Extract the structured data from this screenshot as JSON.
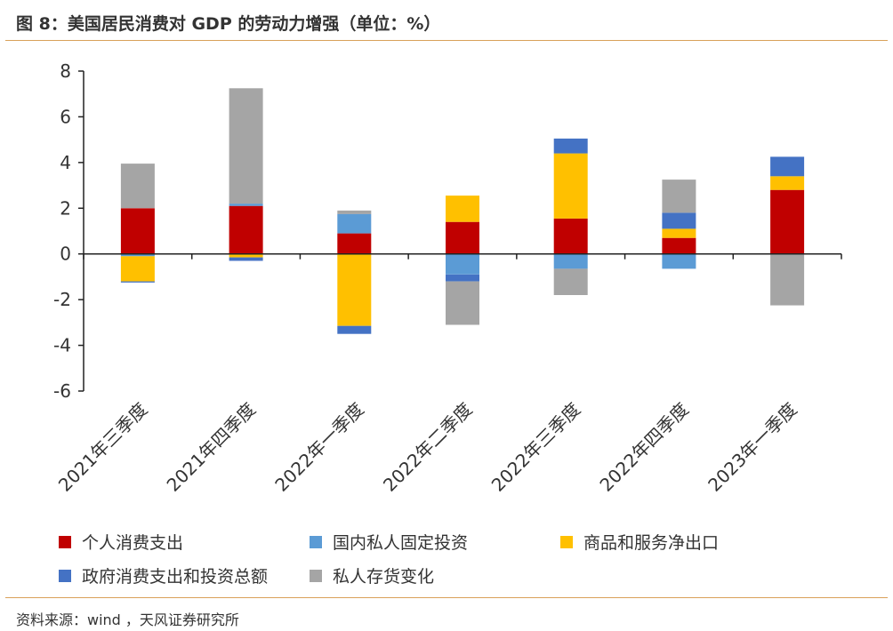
{
  "title": "图 8：美国居民消费对 GDP 的劳动力增强（单位：%）",
  "source": "资料来源：wind ，天风证券研究所",
  "colors": {
    "personal_consumption": "#C00000",
    "fixed_investment": "#5B9BD5",
    "net_exports": "#FFC000",
    "government": "#4472C4",
    "inventory": "#A5A5A5"
  },
  "chart_data": {
    "type": "bar",
    "stacked": true,
    "categories": [
      "2021年三季度",
      "2021年四季度",
      "2022年一季度",
      "2022年二季度",
      "2022年三季度",
      "2022年四季度",
      "2023年一季度"
    ],
    "ylim": [
      -6,
      8
    ],
    "yticks": [
      -6,
      -4,
      -2,
      0,
      2,
      4,
      6,
      8
    ],
    "legend_position": "bottom",
    "grid": false,
    "series": [
      {
        "name": "个人消费支出",
        "color_key": "personal_consumption",
        "values": [
          2.0,
          2.1,
          0.9,
          1.4,
          1.55,
          0.7,
          2.8
        ]
      },
      {
        "name": "国内私人固定投资",
        "color_key": "fixed_investment",
        "values": [
          -0.1,
          0.1,
          0.85,
          -0.9,
          -0.65,
          -0.65,
          0.0
        ]
      },
      {
        "name": "商品和服务净出口",
        "color_key": "net_exports",
        "values": [
          -1.1,
          -0.15,
          -3.15,
          1.15,
          2.85,
          0.4,
          0.6
        ]
      },
      {
        "name": "政府消费支出和投资总额",
        "color_key": "government",
        "values": [
          -0.05,
          -0.15,
          -0.35,
          -0.3,
          0.65,
          0.7,
          0.85
        ]
      },
      {
        "name": "私人存货变化",
        "color_key": "inventory",
        "values": [
          1.95,
          5.05,
          0.15,
          -1.9,
          -1.15,
          1.45,
          -2.25
        ]
      }
    ]
  }
}
